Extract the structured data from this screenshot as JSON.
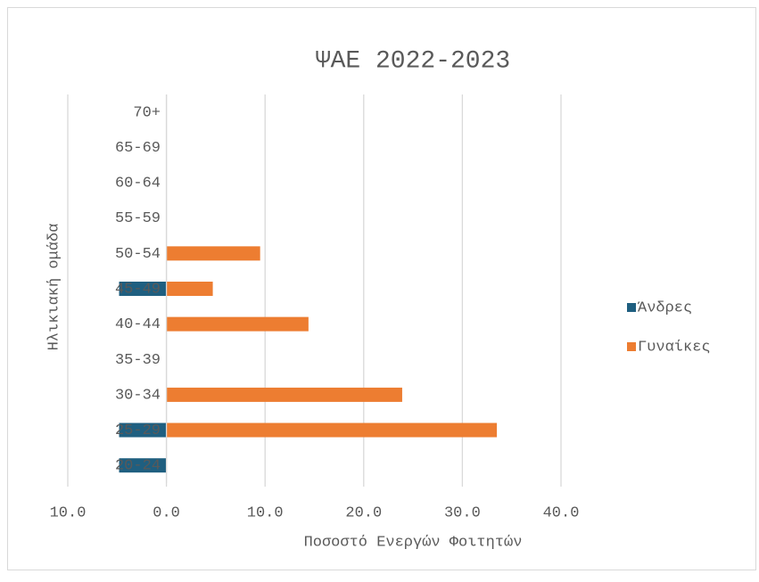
{
  "chart_data": {
    "type": "bar",
    "orientation": "horizontal",
    "title": "ΨΑΕ 2022-2023",
    "xlabel": "Ποσοστό Ενεργών Φοιτητών",
    "ylabel": "Ηλικιακή ομάδα",
    "categories": [
      "20-24",
      "25-29",
      "30-34",
      "35-39",
      "40-44",
      "45-49",
      "50-54",
      "55-59",
      "60-64",
      "65-69",
      "70+"
    ],
    "series": [
      {
        "name": "Άνδρες",
        "color": "#1f5f80",
        "values": [
          -4.8,
          -4.8,
          0,
          0,
          0,
          -4.8,
          0,
          0,
          0,
          0,
          0
        ]
      },
      {
        "name": "Γυναίκες",
        "color": "#ed7d31",
        "values": [
          0,
          33.5,
          23.9,
          0,
          14.4,
          4.7,
          9.5,
          0,
          0,
          0,
          0
        ]
      }
    ],
    "xlim": [
      -10,
      40
    ],
    "xticks": [
      {
        "value": -10,
        "label": "10.0"
      },
      {
        "value": 0,
        "label": "0.0"
      },
      {
        "value": 10,
        "label": "10.0"
      },
      {
        "value": 20,
        "label": "20.0"
      },
      {
        "value": 30,
        "label": "30.0"
      },
      {
        "value": 40,
        "label": "40.0"
      }
    ],
    "grid": true,
    "legend": "right"
  }
}
